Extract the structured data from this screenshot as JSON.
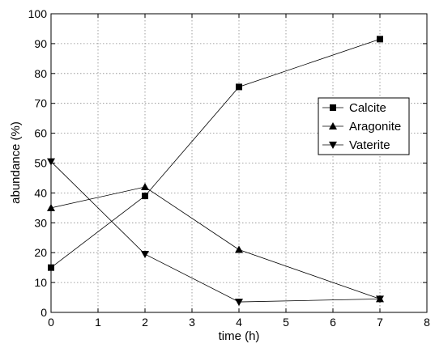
{
  "chart_data": {
    "type": "line",
    "title": "",
    "xlabel": "time (h)",
    "ylabel": "abundance (%)",
    "xlim": [
      0,
      8
    ],
    "ylim": [
      0,
      100
    ],
    "xticks": [
      0,
      1,
      2,
      3,
      4,
      5,
      6,
      7,
      8
    ],
    "yticks": [
      0,
      10,
      20,
      30,
      40,
      50,
      60,
      70,
      80,
      90,
      100
    ],
    "grid": true,
    "legend_position": "right",
    "x": [
      0,
      2,
      4,
      7
    ],
    "series": [
      {
        "name": "Calcite",
        "marker": "square",
        "values": [
          15,
          39,
          75.5,
          91.5
        ]
      },
      {
        "name": "Aragonite",
        "marker": "triangle-up",
        "values": [
          35,
          42,
          21,
          4.5
        ]
      },
      {
        "name": "Vaterite",
        "marker": "triangle-down",
        "values": [
          50.5,
          19.5,
          3.5,
          4.5
        ]
      }
    ]
  }
}
